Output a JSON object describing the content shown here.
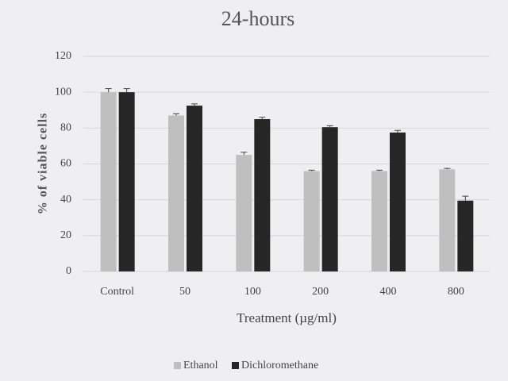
{
  "chart_data": {
    "type": "bar",
    "title": "24-hours",
    "x_label": "Treatment (µg/ml)",
    "y_label": "% of viable cells",
    "categories": [
      "Control",
      "50",
      "100",
      "200",
      "400",
      "800"
    ],
    "series": [
      {
        "name": "Ethanol",
        "color": "#bfbfbf",
        "values": [
          100,
          87,
          65,
          56,
          56,
          57
        ],
        "errors": [
          2,
          1,
          1.5,
          0.5,
          0.5,
          0.5
        ]
      },
      {
        "name": "Dichloromethane",
        "color": "#262626",
        "values": [
          100,
          92.5,
          85,
          80.5,
          77.5,
          39.5
        ],
        "errors": [
          2,
          1,
          1,
          0.8,
          1.2,
          2.5
        ]
      }
    ],
    "ylim": [
      0,
      120
    ],
    "yticks": [
      0,
      20,
      40,
      60,
      80,
      100,
      120
    ],
    "grid": true,
    "legend": "bottom"
  }
}
